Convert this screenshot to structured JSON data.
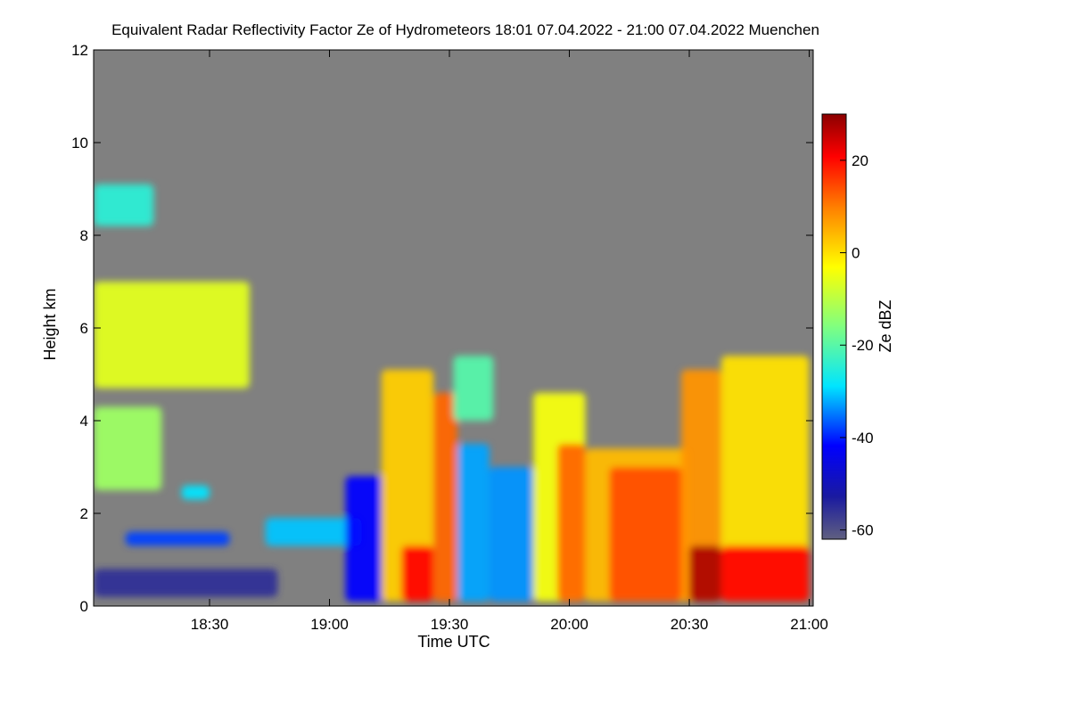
{
  "chart_data": {
    "type": "heatmap",
    "title": "Equivalent Radar Reflectivity Factor Ze of Hydrometeors   18:01 07.04.2022 - 21:00 07.04.2022 Muenchen",
    "xlabel": "Time UTC",
    "ylabel": "Height km",
    "x_ticks": [
      "18:30",
      "19:00",
      "19:30",
      "20:00",
      "20:30",
      "21:00"
    ],
    "x_tick_minutes": [
      1110,
      1140,
      1170,
      1200,
      1230,
      1260
    ],
    "xlim_minutes": [
      1081,
      1261
    ],
    "y_ticks": [
      0,
      2,
      4,
      6,
      8,
      10,
      12
    ],
    "ylim": [
      0,
      12
    ],
    "colorbar": {
      "label": "Ze dBZ",
      "ticks": [
        20,
        0,
        -20,
        -40,
        -60
      ],
      "range": [
        -62,
        30
      ]
    },
    "background_color": "#808080",
    "features": [
      {
        "t0": 1081,
        "t1": 1096,
        "h0": 8.2,
        "h1": 9.1,
        "ze": -24
      },
      {
        "t0": 1081,
        "t1": 1120,
        "h0": 4.7,
        "h1": 7.0,
        "ze": -6
      },
      {
        "t0": 1081,
        "t1": 1098,
        "h0": 2.5,
        "h1": 4.3,
        "ze": -13
      },
      {
        "t0": 1103,
        "t1": 1110,
        "h0": 2.3,
        "h1": 2.6,
        "ze": -28
      },
      {
        "t0": 1081,
        "t1": 1127,
        "h0": 0.2,
        "h1": 0.8,
        "ze": -55
      },
      {
        "t0": 1089,
        "t1": 1115,
        "h0": 1.3,
        "h1": 1.6,
        "ze": -38
      },
      {
        "t0": 1124,
        "t1": 1148,
        "h0": 1.3,
        "h1": 1.9,
        "ze": -30
      },
      {
        "t0": 1144,
        "t1": 1154,
        "h0": 0.1,
        "h1": 2.8,
        "ze": -42
      },
      {
        "t0": 1153,
        "t1": 1166,
        "h0": 0.1,
        "h1": 5.1,
        "ze": 2
      },
      {
        "t0": 1158,
        "t1": 1166,
        "h0": 0.1,
        "h1": 1.3,
        "ze": 20
      },
      {
        "t0": 1166,
        "t1": 1172,
        "h0": 0.1,
        "h1": 4.6,
        "ze": 12
      },
      {
        "t0": 1172,
        "t1": 1180,
        "h0": 0.1,
        "h1": 3.5,
        "ze": -32
      },
      {
        "t0": 1171,
        "t1": 1181,
        "h0": 4.0,
        "h1": 5.4,
        "ze": -20
      },
      {
        "t0": 1180,
        "t1": 1191,
        "h0": 0.1,
        "h1": 3.0,
        "ze": -33
      },
      {
        "t0": 1191,
        "t1": 1204,
        "h0": 0.1,
        "h1": 4.6,
        "ze": -4
      },
      {
        "t0": 1197,
        "t1": 1204,
        "h0": 0.1,
        "h1": 3.5,
        "ze": 12
      },
      {
        "t0": 1204,
        "t1": 1230,
        "h0": 0.1,
        "h1": 3.4,
        "ze": 4
      },
      {
        "t0": 1210,
        "t1": 1228,
        "h0": 0.1,
        "h1": 3.0,
        "ze": 14
      },
      {
        "t0": 1228,
        "t1": 1238,
        "h0": 0.1,
        "h1": 5.1,
        "ze": 8
      },
      {
        "t0": 1230,
        "t1": 1238,
        "h0": 0.1,
        "h1": 1.3,
        "ze": 27
      },
      {
        "t0": 1238,
        "t1": 1260,
        "h0": 0.1,
        "h1": 5.4,
        "ze": 0
      },
      {
        "t0": 1238,
        "t1": 1260,
        "h0": 0.1,
        "h1": 1.3,
        "ze": 20
      }
    ]
  }
}
